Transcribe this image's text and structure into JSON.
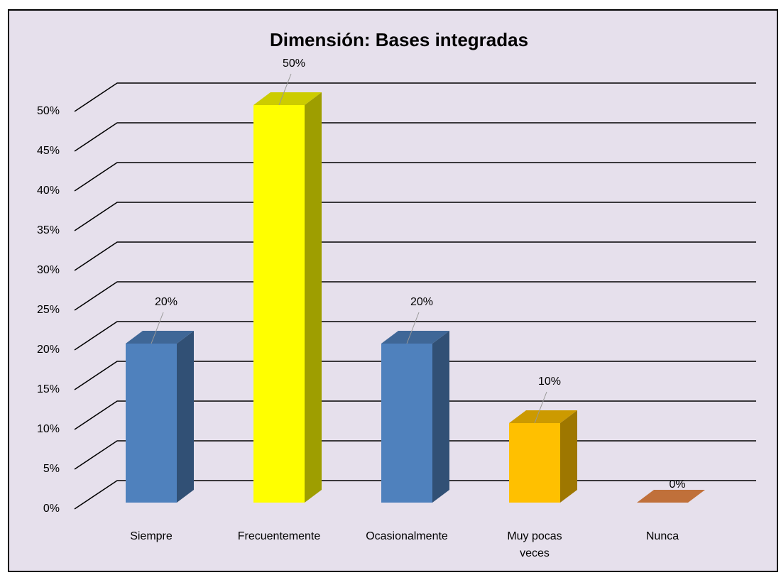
{
  "chart_data": {
    "type": "bar3d",
    "title": "Dimensión: Bases integradas",
    "categories": [
      "Siempre",
      "Frecuentemente",
      "Ocasionalmente",
      "Muy pocas veces",
      "Nunca"
    ],
    "values": [
      20,
      50,
      20,
      10,
      0
    ],
    "value_labels": [
      "20%",
      "50%",
      "20%",
      "10%",
      "0%"
    ],
    "colors": [
      "#4f81bd",
      "#ffff00",
      "#4f81bd",
      "#ffc000",
      "#c0703a"
    ],
    "ylim": [
      0,
      50
    ],
    "yticks": [
      {
        "value": 0,
        "label": "0%"
      },
      {
        "value": 5,
        "label": "5%"
      },
      {
        "value": 10,
        "label": "10%"
      },
      {
        "value": 15,
        "label": "15%"
      },
      {
        "value": 20,
        "label": "20%"
      },
      {
        "value": 25,
        "label": "25%"
      },
      {
        "value": 30,
        "label": "30%"
      },
      {
        "value": 35,
        "label": "35%"
      },
      {
        "value": 40,
        "label": "40%"
      },
      {
        "value": 45,
        "label": "45%"
      },
      {
        "value": 50,
        "label": "50%"
      }
    ],
    "grid": true
  }
}
